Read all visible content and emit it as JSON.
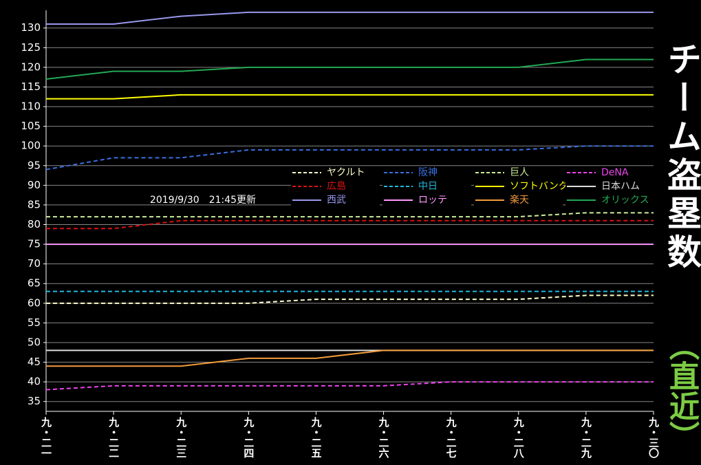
{
  "chart_data": {
    "type": "line",
    "title": "チーム盗塁数",
    "subtitle": "（直近）",
    "annotation": "2019/9/30　21:45更新",
    "categories": [
      "九・二一",
      "九・二二",
      "九・二三",
      "九・二四",
      "九・二五",
      "九・二六",
      "九・二七",
      "九・二八",
      "九・二九",
      "九・三〇"
    ],
    "ylim": [
      32.5,
      134.5
    ],
    "yticks": [
      35,
      40,
      45,
      50,
      55,
      60,
      65,
      70,
      75,
      80,
      85,
      90,
      95,
      100,
      105,
      110,
      115,
      120,
      125,
      130
    ],
    "grid": true,
    "legend": "center-right",
    "series": [
      {
        "name": "ヤクルト",
        "color": "#ffffcc",
        "dashed": true,
        "values": [
          60,
          60,
          60,
          60,
          61,
          61,
          61,
          61,
          62,
          62
        ]
      },
      {
        "name": "阪神",
        "color": "#3a6fe0",
        "dashed": true,
        "values": [
          94,
          97,
          97,
          99,
          99,
          99,
          99,
          99,
          100,
          100
        ]
      },
      {
        "name": "巨人",
        "color": "#ccee99",
        "dashed": true,
        "values": [
          82,
          82,
          82,
          82,
          82,
          82,
          82,
          82,
          83,
          83
        ]
      },
      {
        "name": "DeNA",
        "color": "#ee44ee",
        "dashed": true,
        "values": [
          38,
          39,
          39,
          39,
          39,
          39,
          40,
          40,
          40,
          40
        ]
      },
      {
        "name": "広島",
        "color": "#dd1111",
        "dashed": true,
        "values": [
          79,
          79,
          81,
          81,
          81,
          81,
          81,
          81,
          81,
          81
        ]
      },
      {
        "name": "中日",
        "color": "#22bbdd",
        "dashed": true,
        "values": [
          63,
          63,
          63,
          63,
          63,
          63,
          63,
          63,
          63,
          63
        ]
      },
      {
        "name": "ソフトバンク",
        "color": "#ffff00",
        "dashed": false,
        "values": [
          112,
          112,
          113,
          113,
          113,
          113,
          113,
          113,
          113,
          113
        ]
      },
      {
        "name": "日本ハム",
        "color": "#dddddd",
        "dashed": false,
        "values": [
          48,
          48,
          48,
          48,
          48,
          48,
          48,
          48,
          48,
          48
        ]
      },
      {
        "name": "西武",
        "color": "#9999ee",
        "dashed": false,
        "values": [
          131,
          131,
          133,
          134,
          134,
          134,
          134,
          134,
          134,
          134
        ]
      },
      {
        "name": "ロッテ",
        "color": "#ff99ff",
        "dashed": false,
        "values": [
          75,
          75,
          75,
          75,
          75,
          75,
          75,
          75,
          75,
          75
        ]
      },
      {
        "name": "楽天",
        "color": "#f39c3c",
        "dashed": false,
        "values": [
          44,
          44,
          44,
          46,
          46,
          48,
          48,
          48,
          48,
          48
        ]
      },
      {
        "name": "オリックス",
        "color": "#22aa55",
        "dashed": false,
        "values": [
          117,
          119,
          119,
          120,
          120,
          120,
          120,
          120,
          122,
          122
        ]
      }
    ]
  }
}
